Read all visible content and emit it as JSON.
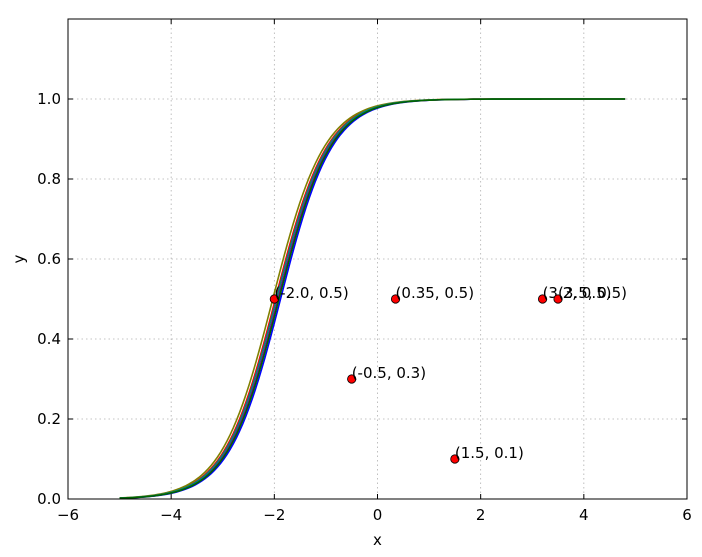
{
  "chart_data": {
    "type": "line",
    "xlabel": "x",
    "ylabel": "y",
    "xlim": [
      -6,
      6
    ],
    "ylim": [
      0,
      1.2
    ],
    "x_ticks": [
      -6,
      -4,
      -2,
      0,
      2,
      4,
      6
    ],
    "y_ticks": [
      0.0,
      0.2,
      0.4,
      0.6,
      0.8,
      1.0
    ],
    "x_tick_labels": [
      "−6",
      "−4",
      "−2",
      "0",
      "2",
      "4",
      "6"
    ],
    "y_tick_labels": [
      "0.0",
      "0.2",
      "0.4",
      "0.6",
      "0.8",
      "1.0"
    ],
    "grid": true,
    "curve_x_range": [
      -5,
      4.8
    ],
    "series": [
      {
        "color": "#0000ff",
        "center": -1.88,
        "steepness": 2.0
      },
      {
        "color": "#800080",
        "center": -1.93,
        "steepness": 2.0
      },
      {
        "color": "#ff0000",
        "center": -1.98,
        "steepness": 2.0
      },
      {
        "color": "#808000",
        "center": -2.03,
        "steepness": 2.0
      },
      {
        "color": "#008080",
        "center": -1.96,
        "steepness": 2.0
      },
      {
        "color": "#006400",
        "center": -1.91,
        "steepness": 2.0
      }
    ],
    "points": [
      {
        "x": -2.0,
        "y": 0.5,
        "label": "(-2.0, 0.5)"
      },
      {
        "x": 0.35,
        "y": 0.5,
        "label": "(0.35, 0.5)"
      },
      {
        "x": -0.5,
        "y": 0.3,
        "label": "(-0.5, 0.3)"
      },
      {
        "x": 1.5,
        "y": 0.1,
        "label": "(1.5, 0.1)"
      },
      {
        "x": 3.2,
        "y": 0.5,
        "label": "(3.2, 0.5)"
      },
      {
        "x": 3.5,
        "y": 0.5,
        "label": "(3.5, 0.5)"
      }
    ],
    "point_color": "#ff0000"
  }
}
